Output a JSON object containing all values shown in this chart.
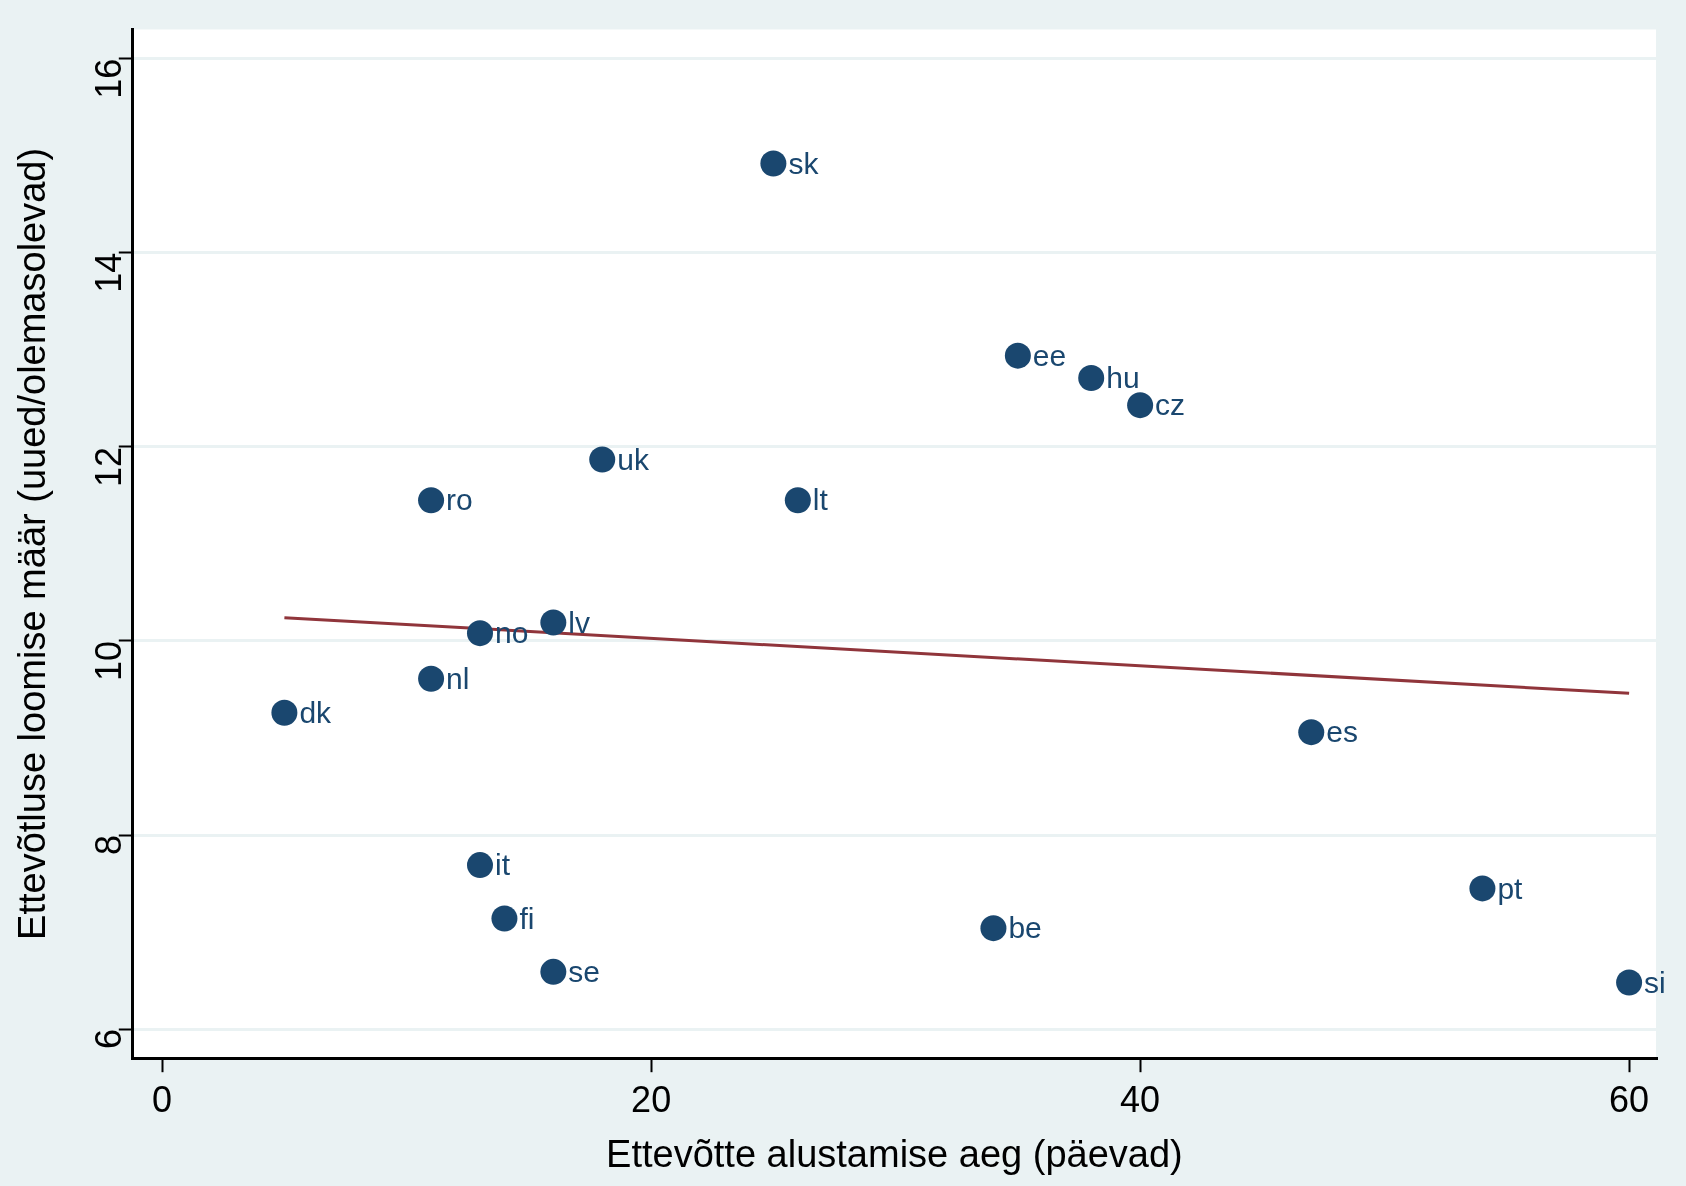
{
  "chart_data": {
    "type": "scatter",
    "xlabel": "Ettevõtte alustamise aeg (päevad)",
    "ylabel": "Ettevõtluse loomise määr (uued/olemasolevad)",
    "xlim": [
      -1.2,
      61.1
    ],
    "ylim": [
      5.7,
      16.3
    ],
    "xticks": [
      0,
      20,
      40,
      60
    ],
    "yticks": [
      6,
      8,
      10,
      12,
      14,
      16
    ],
    "grid": "y",
    "legend": false,
    "marker": "circle",
    "series": [
      {
        "color": "#1a476f",
        "x": [
          25,
          35,
          38,
          40,
          18,
          11,
          26,
          16,
          13,
          11,
          5,
          47,
          13,
          14,
          34,
          54,
          16,
          60
        ],
        "values": [
          14.92,
          12.94,
          12.71,
          12.43,
          11.87,
          11.45,
          11.45,
          10.19,
          10.08,
          9.61,
          9.26,
          9.06,
          7.69,
          7.14,
          7.04,
          7.45,
          6.59,
          6.48
        ],
        "value_labels": [
          "sk",
          "ee",
          "hu",
          "cz",
          "uk",
          "ro",
          "lt",
          "lv",
          "no",
          "nl",
          "dk",
          "es",
          "it",
          "fi",
          "be",
          "pt",
          "se",
          "si"
        ]
      },
      {
        "type": "line",
        "color": "#90353b",
        "marker": "none",
        "x": [
          5,
          60
        ],
        "values": [
          10.24,
          9.46
        ]
      }
    ]
  }
}
